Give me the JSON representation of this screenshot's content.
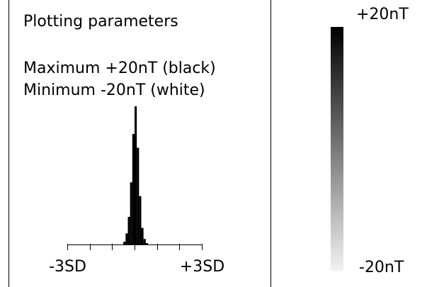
{
  "panel": {
    "title": "Plotting parameters",
    "maximum": "Maximum +20nT (black)",
    "minimum": "Minimum -20nT (white)"
  },
  "chart_data": {
    "type": "histogram",
    "bins": [
      -0.5,
      -0.4,
      -0.3,
      -0.2,
      -0.1,
      0,
      0.1,
      0.2,
      0.3,
      0.4,
      0.5,
      0.6
    ],
    "values": [
      2,
      8,
      20,
      45,
      80,
      100,
      70,
      35,
      12,
      4,
      1
    ],
    "color": "#000000",
    "xlim": [
      -3,
      3
    ],
    "xticks": [
      {
        "value": -3,
        "label": "-3SD"
      },
      -2,
      -1,
      0,
      1,
      2,
      {
        "value": 3,
        "label": "+3SD"
      }
    ],
    "ylim": [
      0,
      100
    ]
  },
  "colorbar": {
    "top_label": "+20nT",
    "bottom_label": "-20nT",
    "top_color": "#000000",
    "bottom_color": "#f2f2f2"
  }
}
